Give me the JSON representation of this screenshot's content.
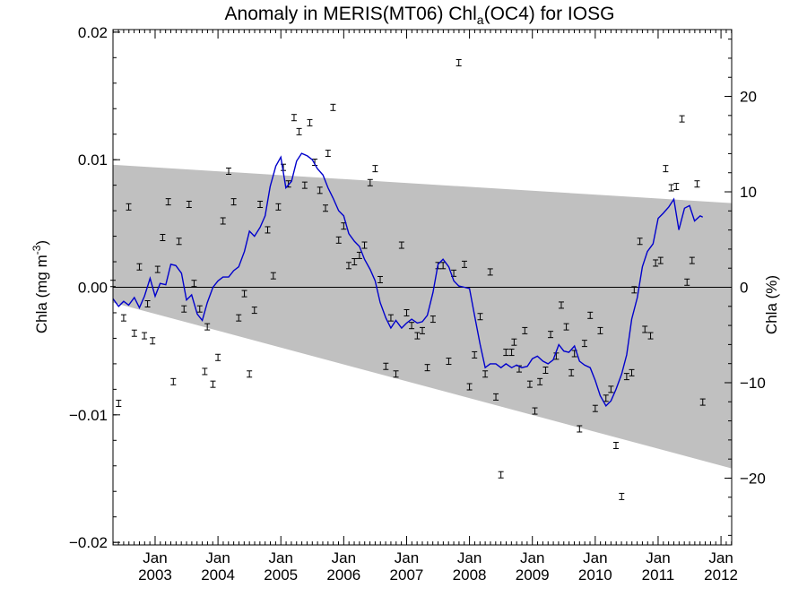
{
  "chart_data": {
    "type": "scatter",
    "title_parts": {
      "pre": "Anomaly in MERIS(MT06) Chl",
      "sub": "a",
      "post": "(OC4) for IOSG"
    },
    "ylabel": {
      "pre": "Chla (mg m",
      "sup": "-3",
      "post": ")"
    },
    "y2label": "Chla (%)",
    "xlim": [
      2002.33,
      2012.17
    ],
    "ylim": [
      -0.0202,
      0.0202
    ],
    "y2lim": [
      -27,
      27
    ],
    "y_ticks": [
      -0.02,
      -0.01,
      0.0,
      0.01,
      0.02
    ],
    "y_tick_labels": [
      "−0.02",
      "−0.01",
      "0.00",
      "0.01",
      "0.02"
    ],
    "y2_ticks": [
      -20,
      -10,
      0,
      10,
      20
    ],
    "y2_tick_labels": [
      "−20",
      "−10",
      "0",
      "10",
      "20"
    ],
    "x_ticks": [
      2003,
      2004,
      2005,
      2006,
      2007,
      2008,
      2009,
      2010,
      2011,
      2012
    ],
    "x_tick_month": "Jan",
    "x_tick_years": [
      "2003",
      "2004",
      "2005",
      "2006",
      "2007",
      "2008",
      "2009",
      "2010",
      "2011",
      "2012"
    ],
    "zero_line": true,
    "band": {
      "upper": [
        [
          2002.33,
          0.0096
        ],
        [
          2012.17,
          0.0066
        ]
      ],
      "lower": [
        [
          2002.33,
          -0.0012
        ],
        [
          2012.17,
          -0.0142
        ]
      ],
      "color": "#c0c0c0"
    },
    "series": [
      {
        "kind": "points",
        "color": "#000000",
        "points": [
          [
            2002.33,
            0.0003
          ],
          [
            2002.42,
            -0.0091
          ],
          [
            2002.5,
            -0.0024
          ],
          [
            2002.58,
            0.0063
          ],
          [
            2002.67,
            -0.0036
          ],
          [
            2002.75,
            0.0016
          ],
          [
            2002.83,
            -0.0038
          ],
          [
            2002.88,
            -0.0013
          ],
          [
            2002.96,
            -0.0042
          ],
          [
            2003.04,
            0.0014
          ],
          [
            2003.12,
            0.0039
          ],
          [
            2003.21,
            0.0067
          ],
          [
            2003.29,
            -0.0074
          ],
          [
            2003.38,
            0.0036
          ],
          [
            2003.46,
            -0.0017
          ],
          [
            2003.54,
            0.0065
          ],
          [
            2003.62,
            0.0003
          ],
          [
            2003.71,
            -0.0017
          ],
          [
            2003.79,
            -0.0066
          ],
          [
            2003.83,
            -0.0031
          ],
          [
            2003.92,
            -0.0076
          ],
          [
            2004.0,
            -0.0055
          ],
          [
            2004.08,
            0.0052
          ],
          [
            2004.17,
            0.0091
          ],
          [
            2004.25,
            0.0067
          ],
          [
            2004.33,
            -0.0024
          ],
          [
            2004.42,
            -0.0005
          ],
          [
            2004.5,
            -0.0068
          ],
          [
            2004.58,
            -0.0018
          ],
          [
            2004.67,
            0.0065
          ],
          [
            2004.79,
            0.0045
          ],
          [
            2004.88,
            0.0009
          ],
          [
            2004.96,
            0.0063
          ],
          [
            2005.04,
            0.0094
          ],
          [
            2005.12,
            0.0081
          ],
          [
            2005.21,
            0.0133
          ],
          [
            2005.29,
            0.0122
          ],
          [
            2005.38,
            0.008
          ],
          [
            2005.46,
            0.0129
          ],
          [
            2005.54,
            0.0098
          ],
          [
            2005.62,
            0.0076
          ],
          [
            2005.71,
            0.0062
          ],
          [
            2005.75,
            0.0105
          ],
          [
            2005.83,
            0.0141
          ],
          [
            2005.92,
            0.0037
          ],
          [
            2006.0,
            0.0048
          ],
          [
            2006.08,
            0.0017
          ],
          [
            2006.17,
            0.002
          ],
          [
            2006.25,
            0.0025
          ],
          [
            2006.33,
            0.0033
          ],
          [
            2006.42,
            0.0082
          ],
          [
            2006.5,
            0.0093
          ],
          [
            2006.58,
            0.0006
          ],
          [
            2006.67,
            -0.0062
          ],
          [
            2006.75,
            -0.0024
          ],
          [
            2006.83,
            -0.0068
          ],
          [
            2006.92,
            0.0033
          ],
          [
            2007.0,
            -0.002
          ],
          [
            2007.08,
            -0.003
          ],
          [
            2007.17,
            -0.0038
          ],
          [
            2007.25,
            -0.0034
          ],
          [
            2007.33,
            -0.0063
          ],
          [
            2007.42,
            -0.0025
          ],
          [
            2007.5,
            0.0017
          ],
          [
            2007.58,
            0.0017
          ],
          [
            2007.67,
            -0.0058
          ],
          [
            2007.75,
            0.0011
          ],
          [
            2007.83,
            0.0176
          ],
          [
            2007.92,
            0.0018
          ],
          [
            2008.0,
            -0.0078
          ],
          [
            2008.08,
            -0.0053
          ],
          [
            2008.17,
            -0.0023
          ],
          [
            2008.25,
            -0.0068
          ],
          [
            2008.33,
            0.0012
          ],
          [
            2008.42,
            -0.0086
          ],
          [
            2008.5,
            -0.0147
          ],
          [
            2008.58,
            -0.0051
          ],
          [
            2008.67,
            -0.0051
          ],
          [
            2008.71,
            -0.0043
          ],
          [
            2008.79,
            -0.0064
          ],
          [
            2008.88,
            -0.0034
          ],
          [
            2008.96,
            -0.0076
          ],
          [
            2009.04,
            -0.0097
          ],
          [
            2009.12,
            -0.0074
          ],
          [
            2009.21,
            -0.0065
          ],
          [
            2009.29,
            -0.0037
          ],
          [
            2009.38,
            -0.0054
          ],
          [
            2009.46,
            -0.0014
          ],
          [
            2009.54,
            -0.0031
          ],
          [
            2009.62,
            -0.0067
          ],
          [
            2009.67,
            -0.0052
          ],
          [
            2009.75,
            -0.0111
          ],
          [
            2009.83,
            -0.0044
          ],
          [
            2009.92,
            -0.0022
          ],
          [
            2010.0,
            -0.0095
          ],
          [
            2010.08,
            -0.0034
          ],
          [
            2010.17,
            -0.0087
          ],
          [
            2010.25,
            -0.008
          ],
          [
            2010.33,
            -0.0124
          ],
          [
            2010.42,
            -0.0164
          ],
          [
            2010.5,
            -0.007
          ],
          [
            2010.58,
            -0.0067
          ],
          [
            2010.62,
            -0.0002
          ],
          [
            2010.71,
            0.0036
          ],
          [
            2010.79,
            -0.0033
          ],
          [
            2010.88,
            -0.0038
          ],
          [
            2010.96,
            0.0019
          ],
          [
            2011.04,
            0.0021
          ],
          [
            2011.12,
            0.0093
          ],
          [
            2011.21,
            0.0078
          ],
          [
            2011.29,
            0.0079
          ],
          [
            2011.38,
            0.0132
          ],
          [
            2011.46,
            0.0004
          ],
          [
            2011.54,
            0.0021
          ],
          [
            2011.62,
            0.0081
          ],
          [
            2011.71,
            -0.009
          ]
        ]
      },
      {
        "kind": "line",
        "color": "#0000cc",
        "points": [
          [
            2002.33,
            -0.0009
          ],
          [
            2002.42,
            -0.0015
          ],
          [
            2002.5,
            -0.0011
          ],
          [
            2002.58,
            -0.0014
          ],
          [
            2002.67,
            -0.0008
          ],
          [
            2002.75,
            -0.0016
          ],
          [
            2002.83,
            -0.0007
          ],
          [
            2002.92,
            0.0007
          ],
          [
            2003.0,
            -0.0007
          ],
          [
            2003.08,
            0.0003
          ],
          [
            2003.17,
            0.0002
          ],
          [
            2003.25,
            0.0018
          ],
          [
            2003.33,
            0.0017
          ],
          [
            2003.42,
            0.0011
          ],
          [
            2003.5,
            -0.001
          ],
          [
            2003.58,
            -0.0006
          ],
          [
            2003.67,
            -0.0021
          ],
          [
            2003.75,
            -0.0026
          ],
          [
            2003.83,
            -0.0012
          ],
          [
            2003.92,
            0.0
          ],
          [
            2004.0,
            0.0005
          ],
          [
            2004.08,
            0.0008
          ],
          [
            2004.17,
            0.0008
          ],
          [
            2004.25,
            0.0013
          ],
          [
            2004.33,
            0.0016
          ],
          [
            2004.42,
            0.0028
          ],
          [
            2004.5,
            0.0044
          ],
          [
            2004.58,
            0.004
          ],
          [
            2004.67,
            0.0047
          ],
          [
            2004.75,
            0.0056
          ],
          [
            2004.83,
            0.0079
          ],
          [
            2004.92,
            0.0095
          ],
          [
            2005.0,
            0.0102
          ],
          [
            2005.08,
            0.0078
          ],
          [
            2005.17,
            0.0083
          ],
          [
            2005.25,
            0.0099
          ],
          [
            2005.33,
            0.0105
          ],
          [
            2005.42,
            0.0103
          ],
          [
            2005.5,
            0.01
          ],
          [
            2005.58,
            0.0093
          ],
          [
            2005.67,
            0.0088
          ],
          [
            2005.75,
            0.0078
          ],
          [
            2005.83,
            0.007
          ],
          [
            2005.92,
            0.006
          ],
          [
            2006.0,
            0.0056
          ],
          [
            2006.08,
            0.0042
          ],
          [
            2006.17,
            0.0036
          ],
          [
            2006.25,
            0.0032
          ],
          [
            2006.33,
            0.0022
          ],
          [
            2006.42,
            0.0014
          ],
          [
            2006.5,
            0.0005
          ],
          [
            2006.58,
            -0.0012
          ],
          [
            2006.67,
            -0.0024
          ],
          [
            2006.75,
            -0.0032
          ],
          [
            2006.83,
            -0.0026
          ],
          [
            2006.92,
            -0.0032
          ],
          [
            2007.0,
            -0.0028
          ],
          [
            2007.08,
            -0.0025
          ],
          [
            2007.17,
            -0.0028
          ],
          [
            2007.25,
            -0.0027
          ],
          [
            2007.33,
            -0.0022
          ],
          [
            2007.42,
            -0.0004
          ],
          [
            2007.5,
            0.0018
          ],
          [
            2007.58,
            0.0022
          ],
          [
            2007.67,
            0.0016
          ],
          [
            2007.75,
            0.0005
          ],
          [
            2007.83,
            0.0001
          ],
          [
            2007.92,
            0.0
          ],
          [
            2008.0,
            -0.0001
          ],
          [
            2008.08,
            -0.0022
          ],
          [
            2008.17,
            -0.0045
          ],
          [
            2008.25,
            -0.0063
          ],
          [
            2008.33,
            -0.006
          ],
          [
            2008.42,
            -0.006
          ],
          [
            2008.5,
            -0.0063
          ],
          [
            2008.58,
            -0.006
          ],
          [
            2008.67,
            -0.0063
          ],
          [
            2008.75,
            -0.0061
          ],
          [
            2008.83,
            -0.0063
          ],
          [
            2008.92,
            -0.0062
          ],
          [
            2009.0,
            -0.0056
          ],
          [
            2009.08,
            -0.0054
          ],
          [
            2009.17,
            -0.0058
          ],
          [
            2009.25,
            -0.006
          ],
          [
            2009.33,
            -0.0057
          ],
          [
            2009.42,
            -0.0045
          ],
          [
            2009.5,
            -0.005
          ],
          [
            2009.58,
            -0.0051
          ],
          [
            2009.67,
            -0.0046
          ],
          [
            2009.75,
            -0.0058
          ],
          [
            2009.83,
            -0.0061
          ],
          [
            2009.92,
            -0.0063
          ],
          [
            2010.0,
            -0.0073
          ],
          [
            2010.08,
            -0.0085
          ],
          [
            2010.17,
            -0.0093
          ],
          [
            2010.25,
            -0.0089
          ],
          [
            2010.33,
            -0.008
          ],
          [
            2010.42,
            -0.0068
          ],
          [
            2010.5,
            -0.0053
          ],
          [
            2010.58,
            -0.0025
          ],
          [
            2010.67,
            -0.0008
          ],
          [
            2010.75,
            0.0016
          ],
          [
            2010.83,
            0.0028
          ],
          [
            2010.92,
            0.0034
          ],
          [
            2011.0,
            0.0054
          ],
          [
            2011.08,
            0.0058
          ],
          [
            2011.17,
            0.0063
          ],
          [
            2011.25,
            0.0069
          ],
          [
            2011.33,
            0.0045
          ],
          [
            2011.42,
            0.0062
          ],
          [
            2011.5,
            0.0064
          ],
          [
            2011.58,
            0.0052
          ],
          [
            2011.67,
            0.0056
          ],
          [
            2011.71,
            0.0055
          ]
        ]
      }
    ]
  }
}
